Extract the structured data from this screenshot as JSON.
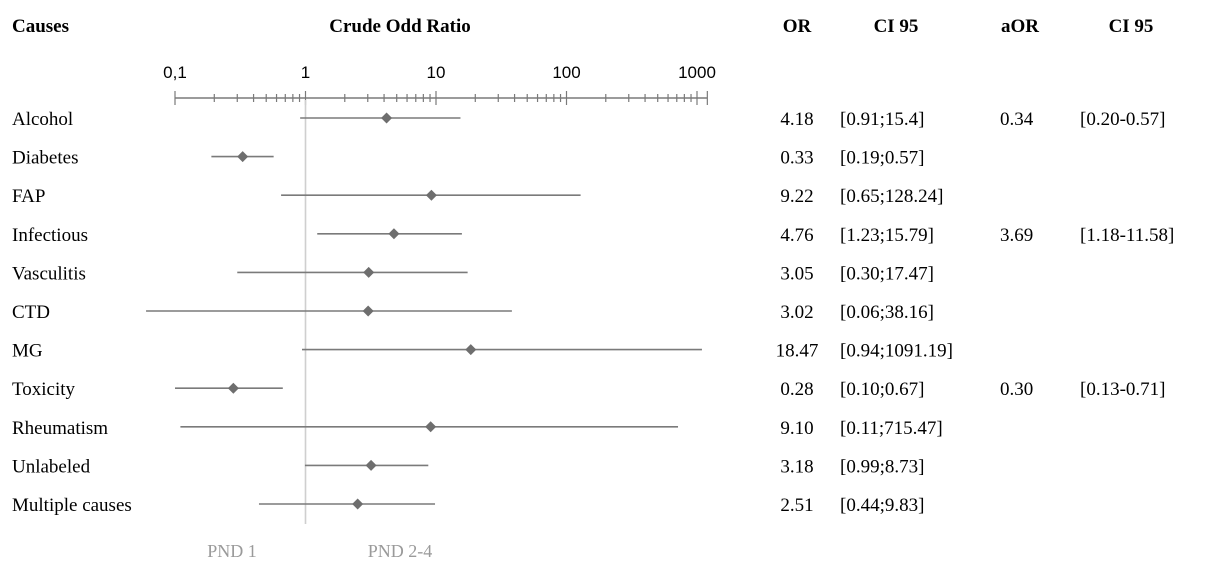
{
  "chart_data": {
    "type": "forest",
    "title": "Crude Odd Ratio",
    "x_scale": "log",
    "xlim": [
      0.1,
      1200
    ],
    "x_ticks": [
      "0,1",
      "1",
      "10",
      "100",
      "1000"
    ],
    "reference_line": 1,
    "headers": {
      "causes": "Causes",
      "chart": "Crude Odd Ratio",
      "or": "OR",
      "ci": "CI 95",
      "aor": "aOR",
      "aci": "CI 95"
    },
    "rows": [
      {
        "cause": "Alcohol",
        "or": 4.18,
        "lo": 0.91,
        "hi": 15.4,
        "or_text": "4.18",
        "ci_text": "[0.91;15.4]",
        "aor_text": "0.34",
        "aci_text": "[0.20-0.57]"
      },
      {
        "cause": "Diabetes",
        "or": 0.33,
        "lo": 0.19,
        "hi": 0.57,
        "or_text": "0.33",
        "ci_text": "[0.19;0.57]",
        "aor_text": "",
        "aci_text": ""
      },
      {
        "cause": "FAP",
        "or": 9.22,
        "lo": 0.65,
        "hi": 128.24,
        "or_text": "9.22",
        "ci_text": "[0.65;128.24]",
        "aor_text": "",
        "aci_text": ""
      },
      {
        "cause": "Infectious",
        "or": 4.76,
        "lo": 1.23,
        "hi": 15.79,
        "or_text": "4.76",
        "ci_text": "[1.23;15.79]",
        "aor_text": "3.69",
        "aci_text": "[1.18-11.58]"
      },
      {
        "cause": "Vasculitis",
        "or": 3.05,
        "lo": 0.3,
        "hi": 17.47,
        "or_text": "3.05",
        "ci_text": "[0.30;17.47]",
        "aor_text": "",
        "aci_text": ""
      },
      {
        "cause": "CTD",
        "or": 3.02,
        "lo": 0.06,
        "hi": 38.16,
        "or_text": "3.02",
        "ci_text": "[0.06;38.16]",
        "aor_text": "",
        "aci_text": ""
      },
      {
        "cause": "MG",
        "or": 18.47,
        "lo": 0.94,
        "hi": 1091.19,
        "or_text": "18.47",
        "ci_text": "[0.94;1091.19]",
        "aor_text": "",
        "aci_text": ""
      },
      {
        "cause": "Toxicity",
        "or": 0.28,
        "lo": 0.1,
        "hi": 0.67,
        "or_text": "0.28",
        "ci_text": "[0.10;0.67]",
        "aor_text": "0.30",
        "aci_text": "[0.13-0.71]"
      },
      {
        "cause": "Rheumatism",
        "or": 9.1,
        "lo": 0.11,
        "hi": 715.47,
        "or_text": "9.10",
        "ci_text": "[0.11;715.47]",
        "aor_text": "",
        "aci_text": ""
      },
      {
        "cause": "Unlabeled",
        "or": 3.18,
        "lo": 0.99,
        "hi": 8.73,
        "or_text": "3.18",
        "ci_text": "[0.99;8.73]",
        "aor_text": "",
        "aci_text": ""
      },
      {
        "cause": "Multiple causes",
        "or": 2.51,
        "lo": 0.44,
        "hi": 9.83,
        "or_text": "2.51",
        "ci_text": "[0.44;9.83]",
        "aor_text": "",
        "aci_text": ""
      }
    ],
    "footer_labels": [
      "PND 1",
      "PND 2-4"
    ],
    "colors": {
      "marker": "#6e6e6e",
      "ci_line": "#7a7a7a",
      "axis": "#7a7a7a",
      "reference_line": "#cfcfcf",
      "footer_text": "#9a9a9a"
    }
  }
}
